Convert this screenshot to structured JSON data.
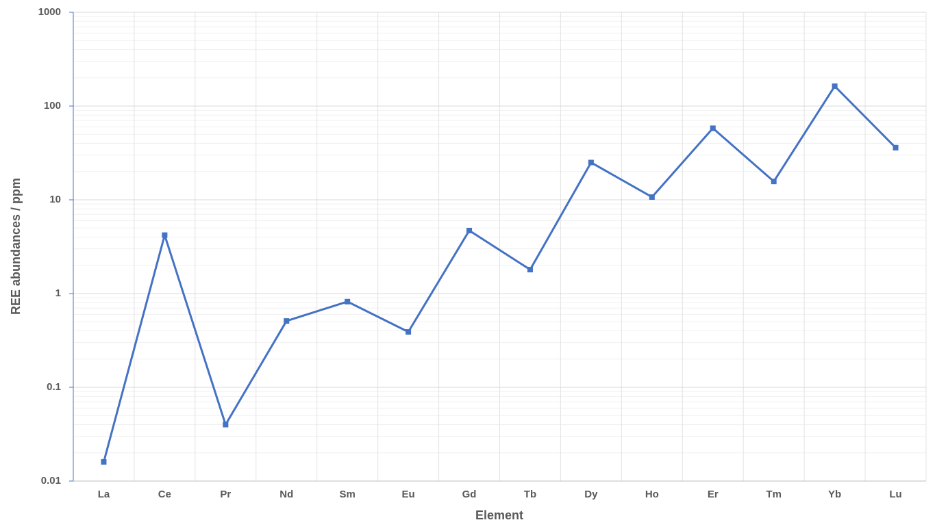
{
  "chart_data": {
    "type": "line",
    "x_label": "Element",
    "y_label": "REE abundances / ppm",
    "categories": [
      "La",
      "Ce",
      "Pr",
      "Nd",
      "Sm",
      "Eu",
      "Gd",
      "Tb",
      "Dy",
      "Ho",
      "Er",
      "Tm",
      "Yb",
      "Lu"
    ],
    "values": [
      0.016,
      4.2,
      0.04,
      0.51,
      0.82,
      0.39,
      4.7,
      1.8,
      25,
      10.7,
      58,
      15.7,
      163,
      36
    ],
    "color": "#4472c4",
    "log_y": true,
    "ylim": [
      0.01,
      1000
    ],
    "yticks": [
      0.01,
      0.1,
      1,
      10,
      100,
      1000
    ],
    "grid": true,
    "minor_grid": true
  }
}
